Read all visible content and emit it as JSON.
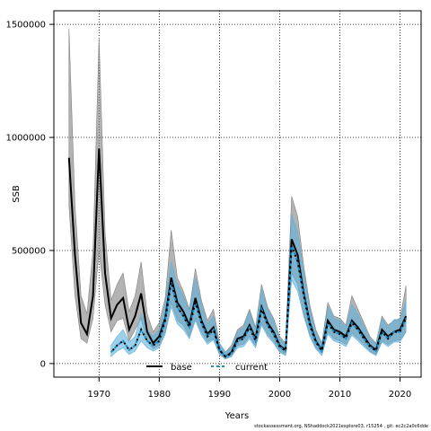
{
  "chart_data": {
    "type": "line",
    "xlabel": "Years",
    "ylabel": "SSB",
    "xlim": [
      1962.5,
      2023.5
    ],
    "ylim": [
      -60000,
      1560000
    ],
    "xticks": [
      1970,
      1980,
      1990,
      2000,
      2010,
      2020
    ],
    "yticks": [
      0,
      500000,
      1000000,
      1500000
    ],
    "ytick_labels": [
      "0",
      "500000",
      "1000000",
      "1500000"
    ],
    "grid": true,
    "legend_position": "bottom-center",
    "series": [
      {
        "name": "base",
        "color": "#000000",
        "band_color": "#808080",
        "x": [
          1965,
          1966,
          1967,
          1968,
          1969,
          1970,
          1971,
          1972,
          1973,
          1974,
          1975,
          1976,
          1977,
          1978,
          1979,
          1980,
          1981,
          1982,
          1983,
          1984,
          1985,
          1986,
          1987,
          1988,
          1989,
          1990,
          1991,
          1992,
          1993,
          1994,
          1995,
          1996,
          1997,
          1998,
          1999,
          2000,
          2001,
          2002,
          2003,
          2004,
          2005,
          2006,
          2007,
          2008,
          2009,
          2010,
          2011,
          2012,
          2013,
          2014,
          2015,
          2016,
          2017,
          2018,
          2019,
          2020,
          2021
        ],
        "values": [
          910000,
          480000,
          180000,
          130000,
          300000,
          950000,
          400000,
          200000,
          260000,
          290000,
          150000,
          210000,
          310000,
          140000,
          90000,
          120000,
          200000,
          380000,
          270000,
          230000,
          170000,
          290000,
          190000,
          130000,
          160000,
          60000,
          30000,
          50000,
          110000,
          120000,
          170000,
          110000,
          250000,
          180000,
          140000,
          80000,
          60000,
          550000,
          480000,
          310000,
          180000,
          100000,
          60000,
          190000,
          150000,
          140000,
          120000,
          190000,
          160000,
          120000,
          80000,
          60000,
          150000,
          120000,
          140000,
          150000,
          210000
        ],
        "lower": [
          700000,
          300000,
          110000,
          90000,
          200000,
          500000,
          260000,
          140000,
          190000,
          200000,
          100000,
          150000,
          200000,
          100000,
          65000,
          80000,
          140000,
          270000,
          190000,
          170000,
          120000,
          200000,
          140000,
          95000,
          110000,
          40000,
          20000,
          35000,
          80000,
          85000,
          120000,
          80000,
          180000,
          130000,
          100000,
          55000,
          40000,
          400000,
          350000,
          220000,
          130000,
          70000,
          45000,
          140000,
          110000,
          100000,
          85000,
          135000,
          110000,
          85000,
          55000,
          40000,
          100000,
          85000,
          100000,
          105000,
          140000
        ],
        "upper": [
          1480000,
          700000,
          300000,
          220000,
          500000,
          1440000,
          580000,
          280000,
          350000,
          400000,
          230000,
          300000,
          450000,
          220000,
          140000,
          180000,
          290000,
          590000,
          380000,
          320000,
          240000,
          420000,
          280000,
          190000,
          240000,
          90000,
          50000,
          80000,
          150000,
          170000,
          240000,
          160000,
          350000,
          250000,
          200000,
          120000,
          90000,
          740000,
          650000,
          430000,
          260000,
          150000,
          90000,
          270000,
          210000,
          200000,
          170000,
          300000,
          240000,
          180000,
          120000,
          90000,
          210000,
          170000,
          190000,
          200000,
          345000
        ]
      },
      {
        "name": "current",
        "color": "#1a8fc9",
        "band_color": "#5fb0dc",
        "x": [
          1972,
          1973,
          1974,
          1975,
          1976,
          1977,
          1978,
          1979,
          1980,
          1981,
          1982,
          1983,
          1984,
          1985,
          1986,
          1987,
          1988,
          1989,
          1990,
          1991,
          1992,
          1993,
          1994,
          1995,
          1996,
          1997,
          1998,
          1999,
          2000,
          2001,
          2002,
          2003,
          2004,
          2005,
          2006,
          2007,
          2008,
          2009,
          2010,
          2011,
          2012,
          2013,
          2014,
          2015,
          2016,
          2017,
          2018,
          2019,
          2020,
          2021
        ],
        "values": [
          50000,
          80000,
          100000,
          60000,
          80000,
          150000,
          100000,
          80000,
          100000,
          190000,
          360000,
          250000,
          210000,
          160000,
          270000,
          180000,
          120000,
          150000,
          60000,
          30000,
          45000,
          100000,
          110000,
          160000,
          100000,
          240000,
          170000,
          130000,
          75000,
          55000,
          520000,
          450000,
          300000,
          170000,
          95000,
          55000,
          180000,
          140000,
          130000,
          110000,
          180000,
          150000,
          110000,
          75000,
          55000,
          140000,
          110000,
          140000,
          140000,
          200000
        ],
        "lower": [
          30000,
          55000,
          70000,
          40000,
          55000,
          100000,
          70000,
          55000,
          70000,
          130000,
          250000,
          175000,
          150000,
          110000,
          190000,
          125000,
          85000,
          105000,
          40000,
          20000,
          30000,
          70000,
          75000,
          110000,
          70000,
          170000,
          120000,
          90000,
          50000,
          35000,
          370000,
          320000,
          210000,
          120000,
          65000,
          35000,
          130000,
          100000,
          90000,
          75000,
          125000,
          100000,
          75000,
          50000,
          35000,
          95000,
          75000,
          95000,
          95000,
          140000
        ],
        "upper": [
          80000,
          120000,
          150000,
          95000,
          120000,
          220000,
          150000,
          120000,
          150000,
          270000,
          450000,
          350000,
          300000,
          230000,
          380000,
          260000,
          175000,
          210000,
          90000,
          50000,
          70000,
          140000,
          160000,
          230000,
          150000,
          330000,
          240000,
          190000,
          110000,
          85000,
          660000,
          580000,
          400000,
          240000,
          140000,
          85000,
          250000,
          200000,
          190000,
          160000,
          260000,
          220000,
          165000,
          110000,
          85000,
          200000,
          160000,
          195000,
          195000,
          280000
        ]
      }
    ]
  },
  "footer_text": "stockassessment.org, NShaddock2021explore03, r15254 , git: ec2c2a0c6dde"
}
